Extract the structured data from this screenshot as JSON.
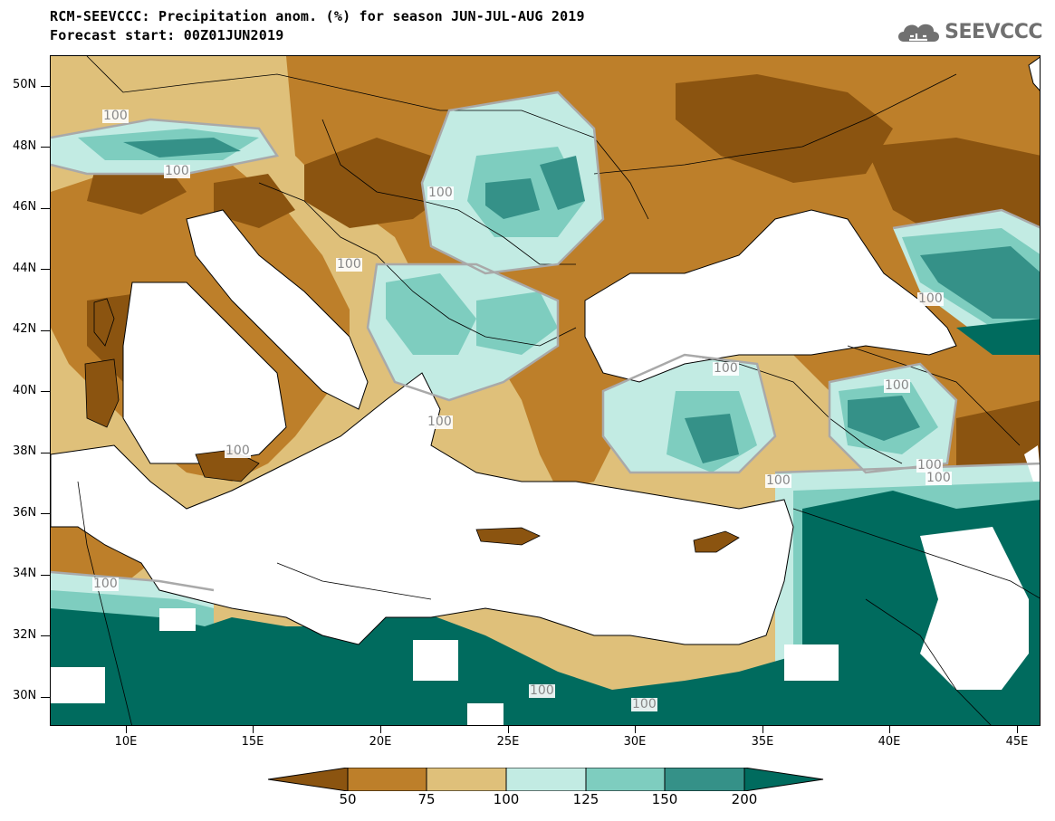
{
  "header": {
    "title": "RCM-SEEVCCC: Precipitation anom. (%) for season JUN-JUL-AUG 2019",
    "subtitle": "Forecast start: 00Z01JUN2019"
  },
  "logo": {
    "text": "SEEVCCC",
    "icon": "cloud-icon",
    "color": "#707070"
  },
  "colors": {
    "level_below_50": "#8b5410",
    "level_50_75": "#bd7f2a",
    "level_75_100": "#dfc07a",
    "level_100_125": "#c2ebe3",
    "level_125_150": "#7ecdbf",
    "level_150_200": "#359188",
    "level_above_200": "#006b5e",
    "contour_100": "#a9a9a9",
    "sea_missing": "#ffffff"
  },
  "axes": {
    "y_ticks": [
      "50N",
      "48N",
      "46N",
      "44N",
      "42N",
      "40N",
      "38N",
      "36N",
      "34N",
      "32N",
      "30N"
    ],
    "x_ticks": [
      "10E",
      "15E",
      "20E",
      "25E",
      "30E",
      "35E",
      "40E",
      "45E"
    ]
  },
  "contour_labels": [
    "100",
    "100",
    "100",
    "100",
    "100",
    "100",
    "100",
    "100",
    "100",
    "100",
    "100",
    "100",
    "100",
    "100",
    "100"
  ],
  "colorbar": {
    "labels": [
      "50",
      "75",
      "100",
      "125",
      "150",
      "200"
    ]
  }
}
